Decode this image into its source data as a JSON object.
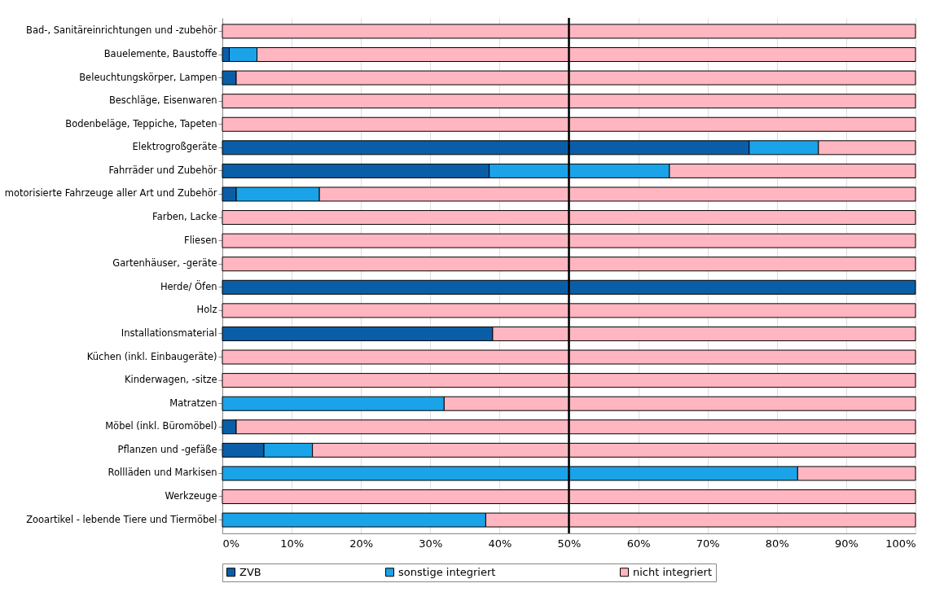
{
  "chart_data": {
    "type": "bar",
    "orientation": "horizontal",
    "stacked": true,
    "categories": [
      "Bad-, Sanitäreinrichtungen und -zubehör",
      "Bauelemente, Baustoffe",
      "Beleuchtungskörper, Lampen",
      "Beschläge, Eisenwaren",
      "Bodenbeläge, Teppiche, Tapeten",
      "Elektrogroßgeräte",
      "Fahrräder und Zubehör",
      "motorisierte Fahrzeuge aller Art und Zubehör",
      "Farben, Lacke",
      "Fliesen",
      "Gartenhäuser, -geräte",
      "Herde/ Öfen",
      "Holz",
      "Installationsmaterial",
      "Küchen (inkl. Einbaugeräte)",
      "Kinderwagen, -sitze",
      "Matratzen",
      "Möbel (inkl. Büromöbel)",
      "Pflanzen und -gefäße",
      "Rollläden und Markisen",
      "Werkzeuge",
      "Zooartikel - lebende Tiere und Tiermöbel"
    ],
    "series": [
      {
        "name": "ZVB",
        "color": "#0a5ea8",
        "values": [
          0,
          1,
          2,
          0,
          0,
          76,
          38.5,
          2,
          0,
          0,
          0,
          100,
          0,
          39,
          0,
          0,
          0,
          2,
          6,
          0,
          0,
          0
        ]
      },
      {
        "name": "sonstige integriert",
        "color": "#1aa3e8",
        "values": [
          0,
          4,
          0,
          0,
          0,
          10,
          26,
          12,
          0,
          0,
          0,
          0,
          0,
          0,
          0,
          0,
          32,
          0,
          7,
          83,
          0,
          38
        ]
      },
      {
        "name": "nicht integriert",
        "color": "#ffb6c1",
        "values": [
          100,
          95,
          98,
          100,
          100,
          14,
          35.5,
          86,
          100,
          100,
          100,
          0,
          100,
          61,
          100,
          100,
          68,
          98,
          87,
          17,
          100,
          62
        ]
      }
    ],
    "xlim": [
      0,
      100
    ],
    "xticks": [
      {
        "value": 0,
        "label": "0%"
      },
      {
        "value": 10,
        "label": "10%"
      },
      {
        "value": 20,
        "label": "20%"
      },
      {
        "value": 30,
        "label": "30%"
      },
      {
        "value": 40,
        "label": "40%"
      },
      {
        "value": 50,
        "label": "50%"
      },
      {
        "value": 60,
        "label": "60%"
      },
      {
        "value": 70,
        "label": "70%"
      },
      {
        "value": 80,
        "label": "80%"
      },
      {
        "value": 90,
        "label": "90%"
      },
      {
        "value": 100,
        "label": "100%"
      }
    ],
    "ref_lines": [
      {
        "axis": "x",
        "value": 50,
        "color": "#000000"
      }
    ],
    "grid": "x",
    "legend": "bottom"
  }
}
